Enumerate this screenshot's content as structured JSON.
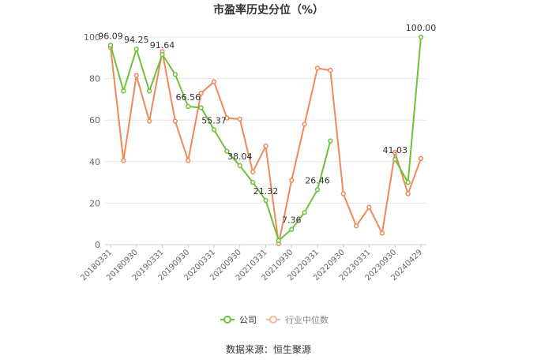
{
  "chart_data": {
    "type": "line",
    "title": "市盈率历史分位（%）",
    "source": "数据来源：恒生聚源",
    "ylim": [
      0,
      100
    ],
    "yticks": [
      0,
      20,
      40,
      60,
      80,
      100
    ],
    "grid": true,
    "legend_position": "bottom",
    "x": [
      "20180331",
      "20180630",
      "20180930",
      "20181231",
      "20190331",
      "20190630",
      "20190930",
      "20191231",
      "20200331",
      "20200630",
      "20200930",
      "20201231",
      "20210331",
      "20210630",
      "20210930",
      "20211231",
      "20220331",
      "20220630",
      "20220930",
      "20221231",
      "20230331",
      "20230630",
      "20230930",
      "20231231",
      "20240429"
    ],
    "xtick_labels": [
      "20180331",
      "20180930",
      "20190331",
      "20190930",
      "20200331",
      "20200930",
      "20210331",
      "20210930",
      "20220331",
      "20220930",
      "20230331",
      "20230930",
      "20240429"
    ],
    "series": [
      {
        "name": "公司",
        "color": "#6cc33a",
        "values": [
          96.09,
          74.0,
          94.25,
          74.0,
          91.64,
          82.0,
          66.56,
          66.0,
          55.37,
          45.0,
          38.04,
          30.0,
          21.32,
          2.0,
          7.36,
          15.5,
          26.46,
          50.0,
          null,
          null,
          null,
          null,
          41.03,
          30.0,
          100.0
        ],
        "labels": [
          96.09,
          null,
          94.25,
          null,
          91.64,
          null,
          66.56,
          null,
          55.37,
          null,
          38.04,
          null,
          21.32,
          null,
          7.36,
          null,
          26.46,
          null,
          null,
          null,
          null,
          null,
          41.03,
          null,
          100.0
        ]
      },
      {
        "name": "行业中位数",
        "color": "#f0895a",
        "values": [
          95.0,
          40.5,
          81.5,
          59.5,
          93.0,
          59.5,
          40.5,
          73.0,
          78.5,
          61.0,
          60.5,
          35.0,
          47.5,
          0.5,
          31.0,
          58.0,
          85.0,
          84.0,
          24.5,
          9.0,
          18.0,
          5.5,
          44.5,
          24.5,
          41.5
        ]
      }
    ]
  }
}
